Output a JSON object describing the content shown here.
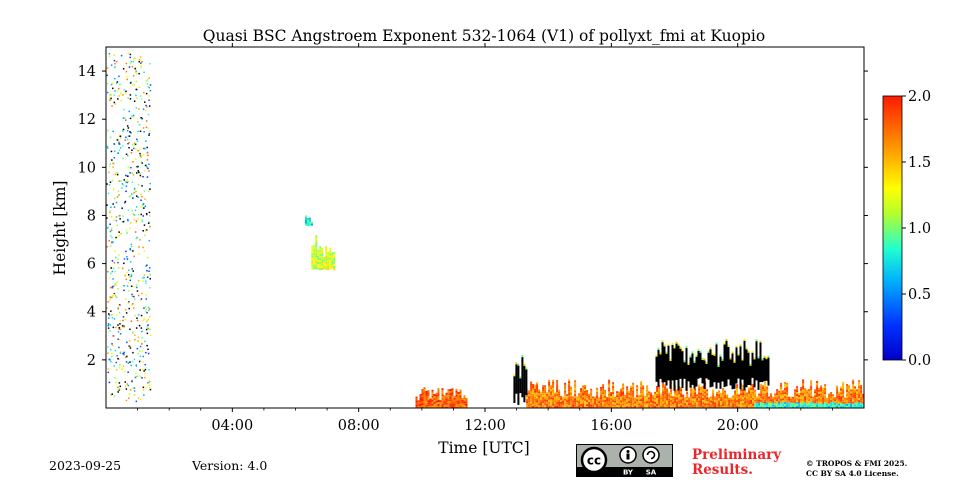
{
  "chart_data": {
    "type": "heatmap",
    "title": "Quasi BSC Angstroem Exponent 532-1064 (V1) of pollyxt_fmi at Kuopio",
    "xlabel": "Time [UTC]",
    "ylabel": "Height [km]",
    "xlim": [
      0,
      24
    ],
    "ylim": [
      0,
      15
    ],
    "xticks": [
      {
        "value": 4,
        "label": "04:00"
      },
      {
        "value": 8,
        "label": "08:00"
      },
      {
        "value": 12,
        "label": "12:00"
      },
      {
        "value": 16,
        "label": "16:00"
      },
      {
        "value": 20,
        "label": "20:00"
      }
    ],
    "yticks": [
      {
        "value": 2,
        "label": "2"
      },
      {
        "value": 4,
        "label": "4"
      },
      {
        "value": 6,
        "label": "6"
      },
      {
        "value": 8,
        "label": "8"
      },
      {
        "value": 10,
        "label": "10"
      },
      {
        "value": 12,
        "label": "12"
      },
      {
        "value": 14,
        "label": "14"
      }
    ],
    "colorbar": {
      "range": [
        0,
        2
      ],
      "colormap": "jet",
      "ticks": [
        {
          "value": 0,
          "label": "0.0"
        },
        {
          "value": 0.5,
          "label": "0.5"
        },
        {
          "value": 1.0,
          "label": "1.0"
        },
        {
          "value": 1.5,
          "label": "1.5"
        },
        {
          "value": 2.0,
          "label": "2.0"
        }
      ]
    },
    "regions": [
      {
        "kind": "scatter",
        "t0": 0.0,
        "t1": 1.4,
        "h0": 0.3,
        "h1": 14.8,
        "value": 1.0
      },
      {
        "kind": "patch",
        "t0": 6.5,
        "t1": 7.2,
        "h0": 5.8,
        "h1": 7.2,
        "value": 1.2
      },
      {
        "kind": "patch",
        "t0": 6.3,
        "t1": 6.5,
        "h0": 7.6,
        "h1": 8.3,
        "value": 0.8
      },
      {
        "kind": "layer",
        "t0": 9.8,
        "t1": 11.4,
        "h0": 0.0,
        "h1": 0.9,
        "value": 1.8
      },
      {
        "kind": "layer",
        "t0": 13.3,
        "t1": 24.0,
        "h0": 0.0,
        "h1": 1.2,
        "value": 1.7
      },
      {
        "kind": "cloud",
        "t0": 12.9,
        "t1": 13.3,
        "h0": 0.0,
        "h1": 2.2,
        "value": null
      },
      {
        "kind": "cloud",
        "t0": 17.4,
        "t1": 21.0,
        "h0": 0.6,
        "h1": 2.8,
        "value": null
      }
    ]
  },
  "footer": {
    "date": "2023-09-25",
    "version": "Version: 4.0",
    "preliminary": [
      "Preliminary",
      "Results."
    ],
    "copyright": [
      "© TROPOS & FMI 2025.",
      "CC BY SA 4.0 License."
    ],
    "license_badge": [
      "BY",
      "SA"
    ]
  },
  "colors": {
    "colormap_stops": [
      "#00007f",
      "#0000ff",
      "#007fff",
      "#00ffff",
      "#7fff7f",
      "#ffff00",
      "#ff7f00",
      "#ff0000",
      "#7f0000"
    ]
  }
}
